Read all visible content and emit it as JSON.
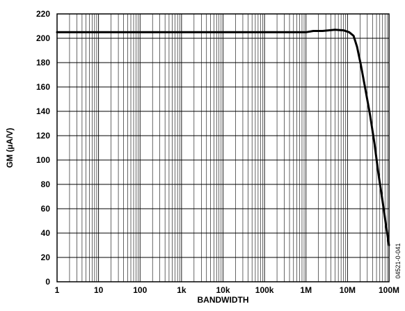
{
  "chart_data": {
    "type": "line",
    "title": "",
    "xlabel": "BANDWIDTH",
    "ylabel": "GM (µA/V)",
    "x_scale": "log",
    "xlim": [
      1,
      100000000
    ],
    "ylim": [
      0,
      220
    ],
    "grid": true,
    "x_ticks": [
      {
        "value": 1,
        "label": "1"
      },
      {
        "value": 10,
        "label": "10"
      },
      {
        "value": 100,
        "label": "100"
      },
      {
        "value": 1000,
        "label": "1k"
      },
      {
        "value": 10000,
        "label": "10k"
      },
      {
        "value": 100000,
        "label": "100k"
      },
      {
        "value": 1000000,
        "label": "1M"
      },
      {
        "value": 10000000,
        "label": "10M"
      },
      {
        "value": 100000000,
        "label": "100M"
      }
    ],
    "y_ticks": [
      0,
      20,
      40,
      60,
      80,
      100,
      120,
      140,
      160,
      180,
      200,
      220
    ],
    "series": [
      {
        "color": "#000000",
        "x": [
          1,
          1000000,
          1500000,
          2500000,
          5000000,
          8000000,
          11000000,
          14000000,
          17000000,
          21000000,
          27000000,
          35000000,
          45000000,
          55000000,
          70000000,
          85000000,
          100000000
        ],
        "y": [
          205,
          205,
          206,
          206,
          207,
          206.5,
          205,
          202,
          193,
          178,
          158,
          137,
          113,
          90,
          66,
          46,
          30
        ]
      }
    ],
    "annotation": "04521-0-041"
  }
}
